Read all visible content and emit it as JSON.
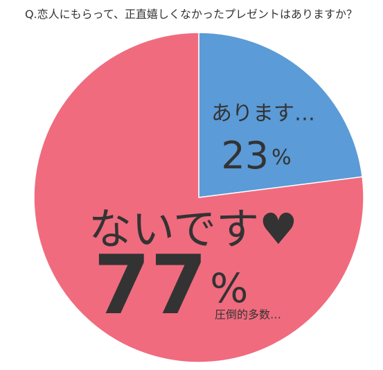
{
  "chart_data": {
    "type": "pie",
    "title": "Q.恋人にもらって、正直嬉しくなかったプレゼントはありますか？",
    "categories": [
      "あります…",
      "ないです♥"
    ],
    "values": [
      23,
      77
    ],
    "value_labels": [
      "23%",
      "77%"
    ],
    "colors": [
      "#5b9bd7",
      "#f06b7e"
    ],
    "annotation": "圧倒的多数…"
  }
}
